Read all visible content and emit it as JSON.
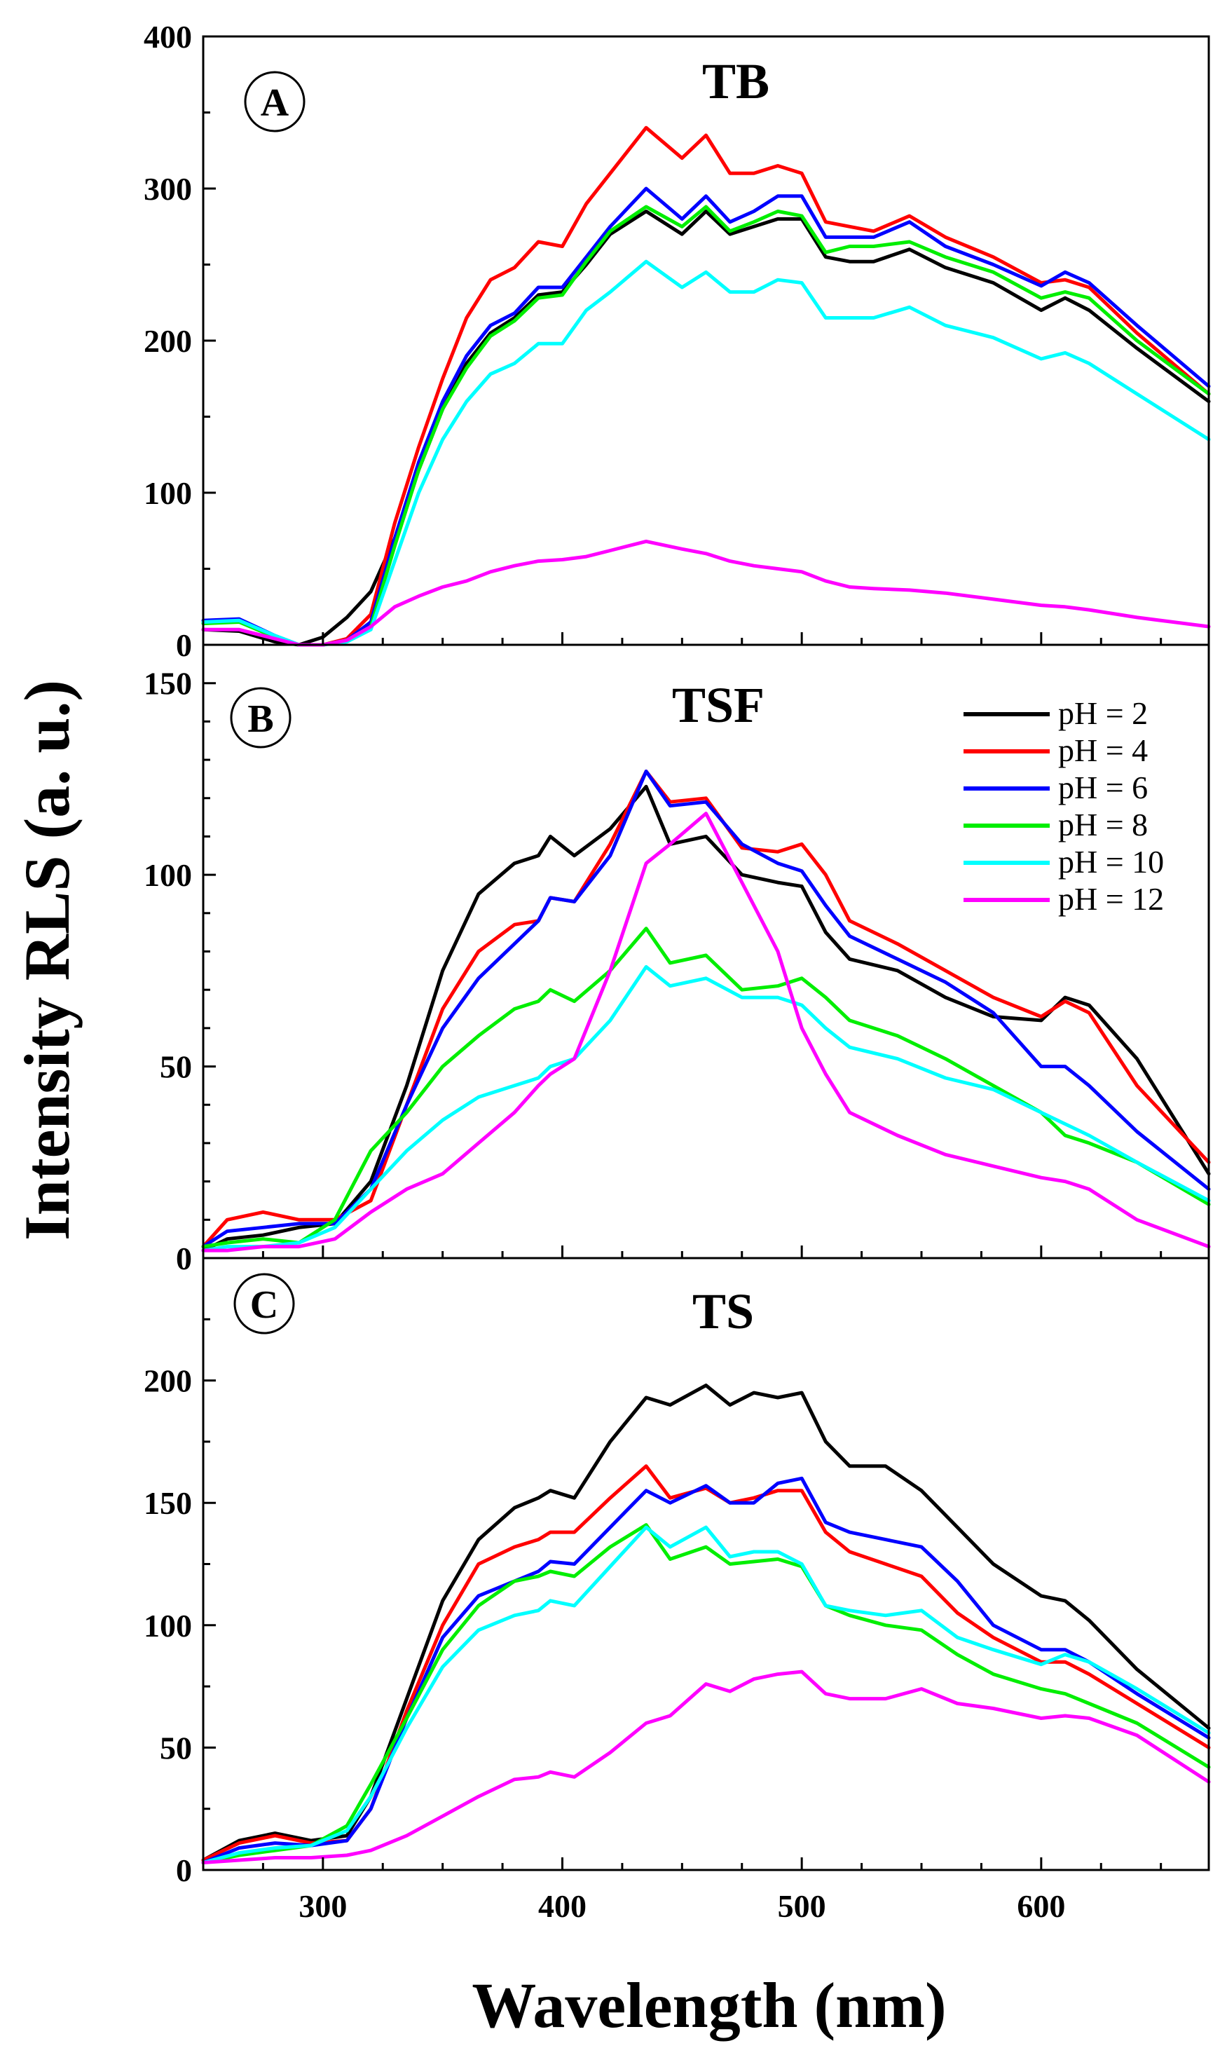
{
  "chart_data": [
    {
      "type": "line",
      "panel": "A",
      "title": "TB",
      "xlim": [
        250,
        670
      ],
      "ylim": [
        0,
        400
      ],
      "yticks": [
        0,
        100,
        200,
        300,
        400
      ],
      "x": [
        250,
        265,
        280,
        290,
        300,
        310,
        320,
        330,
        340,
        350,
        360,
        370,
        380,
        390,
        400,
        410,
        420,
        435,
        450,
        460,
        470,
        480,
        490,
        500,
        510,
        520,
        530,
        545,
        560,
        580,
        600,
        610,
        620,
        640,
        670
      ],
      "series": [
        {
          "name": "pH = 2",
          "color": "#000000",
          "values": [
            10,
            9,
            2,
            0,
            5,
            18,
            35,
            70,
            115,
            155,
            185,
            205,
            215,
            230,
            232,
            250,
            270,
            285,
            270,
            285,
            270,
            275,
            280,
            280,
            255,
            252,
            252,
            260,
            248,
            238,
            220,
            228,
            220,
            195,
            160
          ]
        },
        {
          "name": "pH = 4",
          "color": "#ff0000",
          "values": [
            15,
            16,
            5,
            0,
            0,
            4,
            20,
            80,
            130,
            175,
            215,
            240,
            248,
            265,
            262,
            290,
            310,
            340,
            320,
            335,
            310,
            310,
            315,
            310,
            278,
            275,
            272,
            282,
            268,
            255,
            238,
            240,
            235,
            205,
            165
          ]
        },
        {
          "name": "pH = 6",
          "color": "#0000ff",
          "values": [
            16,
            17,
            6,
            0,
            0,
            3,
            15,
            70,
            120,
            160,
            190,
            210,
            218,
            235,
            235,
            255,
            275,
            300,
            280,
            295,
            278,
            285,
            295,
            295,
            268,
            268,
            268,
            278,
            262,
            250,
            236,
            245,
            238,
            210,
            170
          ]
        },
        {
          "name": "pH = 8",
          "color": "#00ee00",
          "values": [
            14,
            15,
            5,
            0,
            0,
            3,
            12,
            65,
            115,
            155,
            182,
            203,
            213,
            228,
            230,
            252,
            272,
            288,
            275,
            288,
            272,
            278,
            285,
            282,
            258,
            262,
            262,
            265,
            255,
            245,
            228,
            232,
            228,
            200,
            165
          ]
        },
        {
          "name": "pH = 10",
          "color": "#00ffff",
          "values": [
            15,
            16,
            6,
            0,
            0,
            2,
            10,
            55,
            100,
            135,
            160,
            178,
            185,
            198,
            198,
            220,
            232,
            252,
            235,
            245,
            232,
            232,
            240,
            238,
            215,
            215,
            215,
            222,
            210,
            202,
            188,
            192,
            185,
            165,
            135
          ]
        },
        {
          "name": "pH = 12",
          "color": "#ff00ff",
          "values": [
            10,
            10,
            4,
            0,
            0,
            3,
            12,
            25,
            32,
            38,
            42,
            48,
            52,
            55,
            56,
            58,
            62,
            68,
            63,
            60,
            55,
            52,
            50,
            48,
            42,
            38,
            37,
            36,
            34,
            30,
            26,
            25,
            23,
            18,
            12
          ]
        }
      ]
    },
    {
      "type": "line",
      "panel": "B",
      "title": "TSF",
      "xlim": [
        250,
        670
      ],
      "ylim": [
        0,
        160
      ],
      "yticks": [
        0,
        50,
        100,
        150
      ],
      "x": [
        250,
        260,
        275,
        290,
        305,
        320,
        335,
        350,
        365,
        380,
        390,
        395,
        405,
        420,
        435,
        445,
        460,
        475,
        490,
        500,
        510,
        520,
        540,
        560,
        580,
        600,
        610,
        620,
        640,
        670
      ],
      "series": [
        {
          "name": "pH = 2",
          "color": "#000000",
          "values": [
            2,
            5,
            6,
            8,
            9,
            20,
            45,
            75,
            95,
            103,
            105,
            110,
            105,
            112,
            123,
            108,
            110,
            100,
            98,
            97,
            85,
            78,
            75,
            68,
            63,
            62,
            68,
            66,
            52,
            22
          ]
        },
        {
          "name": "pH = 4",
          "color": "#ff0000",
          "values": [
            3,
            10,
            12,
            10,
            10,
            15,
            40,
            65,
            80,
            87,
            88,
            94,
            93,
            108,
            127,
            119,
            120,
            107,
            106,
            108,
            100,
            88,
            82,
            75,
            68,
            63,
            67,
            64,
            45,
            25
          ]
        },
        {
          "name": "pH = 6",
          "color": "#0000ff",
          "values": [
            3,
            7,
            8,
            9,
            9,
            18,
            40,
            60,
            73,
            82,
            88,
            94,
            93,
            105,
            127,
            118,
            119,
            108,
            103,
            101,
            92,
            84,
            78,
            72,
            64,
            50,
            50,
            45,
            33,
            18
          ]
        },
        {
          "name": "pH = 8",
          "color": "#00ee00",
          "values": [
            3,
            4,
            5,
            4,
            10,
            28,
            38,
            50,
            58,
            65,
            67,
            70,
            67,
            75,
            86,
            77,
            79,
            70,
            71,
            73,
            68,
            62,
            58,
            52,
            45,
            38,
            32,
            30,
            25,
            14
          ]
        },
        {
          "name": "pH = 10",
          "color": "#00ffff",
          "values": [
            2,
            3,
            3,
            4,
            8,
            18,
            28,
            36,
            42,
            45,
            47,
            50,
            52,
            62,
            76,
            71,
            73,
            68,
            68,
            66,
            60,
            55,
            52,
            47,
            44,
            38,
            35,
            32,
            25,
            15
          ]
        },
        {
          "name": "pH = 12",
          "color": "#ff00ff",
          "values": [
            2,
            2,
            3,
            3,
            5,
            12,
            18,
            22,
            30,
            38,
            45,
            48,
            52,
            75,
            103,
            108,
            116,
            98,
            80,
            60,
            48,
            38,
            32,
            27,
            24,
            21,
            20,
            18,
            10,
            3
          ]
        }
      ]
    },
    {
      "type": "line",
      "panel": "C",
      "title": "TS",
      "xlim": [
        250,
        670
      ],
      "ylim": [
        0,
        250
      ],
      "yticks": [
        0,
        50,
        100,
        150,
        200
      ],
      "x": [
        250,
        265,
        280,
        295,
        310,
        320,
        335,
        350,
        365,
        380,
        390,
        395,
        405,
        420,
        435,
        445,
        460,
        470,
        480,
        490,
        500,
        510,
        520,
        535,
        550,
        565,
        580,
        600,
        610,
        620,
        640,
        670
      ],
      "series": [
        {
          "name": "pH = 2",
          "color": "#000000",
          "values": [
            4,
            12,
            15,
            12,
            14,
            30,
            70,
            110,
            135,
            148,
            152,
            155,
            152,
            175,
            193,
            190,
            198,
            190,
            195,
            193,
            195,
            175,
            165,
            165,
            155,
            140,
            125,
            112,
            110,
            102,
            82,
            58
          ]
        },
        {
          "name": "pH = 4",
          "color": "#ff0000",
          "values": [
            4,
            11,
            14,
            11,
            12,
            25,
            65,
            100,
            125,
            132,
            135,
            138,
            138,
            152,
            165,
            152,
            156,
            150,
            152,
            155,
            155,
            138,
            130,
            125,
            120,
            105,
            95,
            85,
            85,
            80,
            68,
            50
          ]
        },
        {
          "name": "pH = 6",
          "color": "#0000ff",
          "values": [
            3,
            9,
            11,
            10,
            12,
            25,
            62,
            95,
            112,
            118,
            122,
            126,
            125,
            140,
            155,
            150,
            157,
            150,
            150,
            158,
            160,
            142,
            138,
            135,
            132,
            118,
            100,
            90,
            90,
            85,
            72,
            54
          ]
        },
        {
          "name": "pH = 8",
          "color": "#00ee00",
          "values": [
            3,
            6,
            8,
            10,
            18,
            35,
            62,
            90,
            108,
            118,
            120,
            122,
            120,
            132,
            141,
            127,
            132,
            125,
            126,
            127,
            124,
            108,
            104,
            100,
            98,
            88,
            80,
            74,
            72,
            68,
            60,
            42
          ]
        },
        {
          "name": "pH = 10",
          "color": "#00ffff",
          "values": [
            3,
            7,
            9,
            10,
            16,
            30,
            58,
            83,
            98,
            104,
            106,
            110,
            108,
            124,
            140,
            132,
            140,
            128,
            130,
            130,
            125,
            108,
            106,
            104,
            106,
            95,
            90,
            84,
            88,
            85,
            74,
            56
          ]
        },
        {
          "name": "pH = 12",
          "color": "#ff00ff",
          "values": [
            3,
            4,
            5,
            5,
            6,
            8,
            14,
            22,
            30,
            37,
            38,
            40,
            38,
            48,
            60,
            63,
            76,
            73,
            78,
            80,
            81,
            72,
            70,
            70,
            74,
            68,
            66,
            62,
            63,
            62,
            55,
            36
          ]
        }
      ]
    }
  ],
  "xticks": [
    300,
    400,
    500,
    600
  ],
  "xlabel": "Wavelength (nm)",
  "ylabel": "Intensity RLS (a. u.)",
  "legend": {
    "placement": "top-right of panel B",
    "entries": [
      {
        "label": "pH = 2",
        "color": "#000000"
      },
      {
        "label": "pH = 4",
        "color": "#ff0000"
      },
      {
        "label": "pH = 6",
        "color": "#0000ff"
      },
      {
        "label": "pH = 8",
        "color": "#00ee00"
      },
      {
        "label": "pH = 10",
        "color": "#00ffff"
      },
      {
        "label": "pH = 12",
        "color": "#ff00ff"
      }
    ]
  }
}
